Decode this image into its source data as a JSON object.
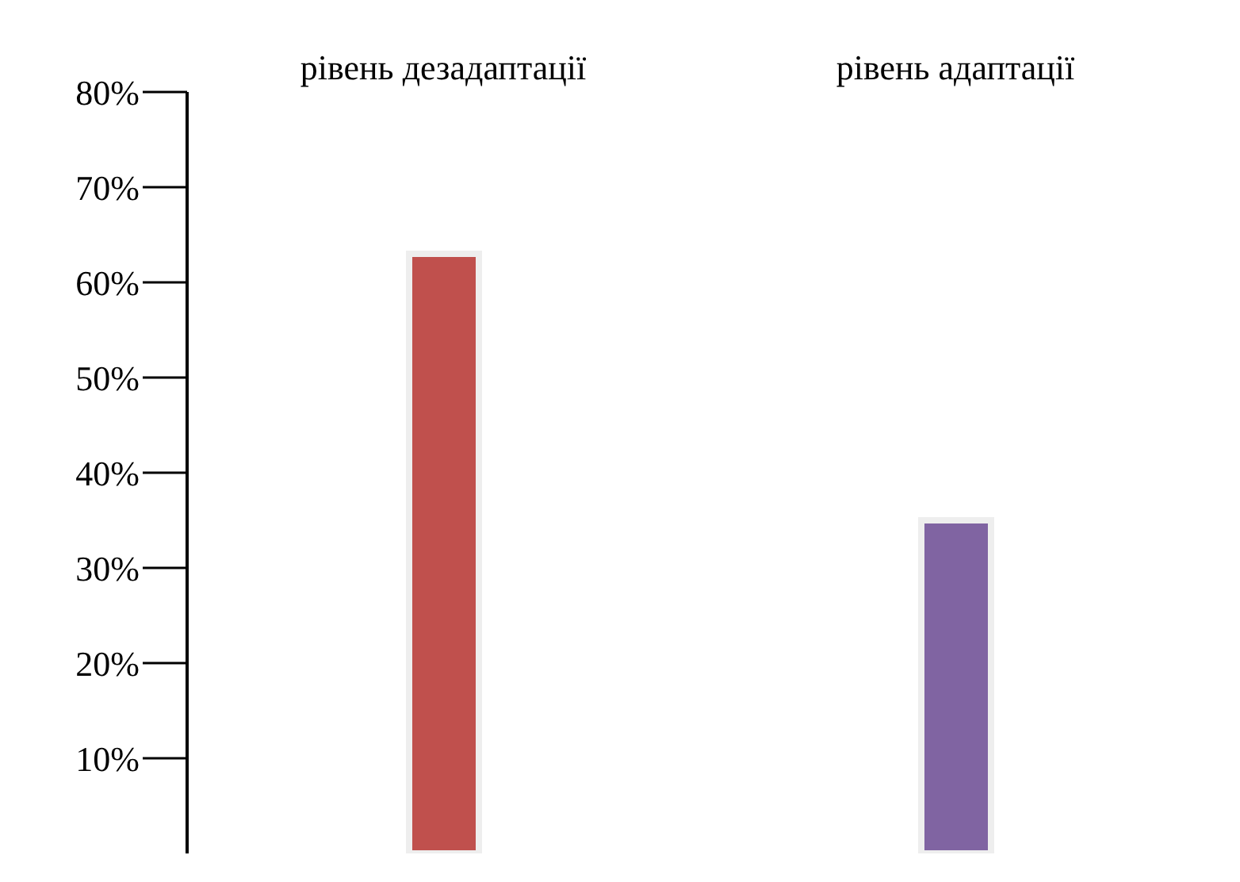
{
  "chart_data": {
    "type": "bar",
    "categories": [
      "рівень дезадаптації",
      "рівень адаптації"
    ],
    "values": [
      63,
      35
    ],
    "colors": [
      "#c0504d",
      "#8064a2"
    ],
    "ylim": [
      0,
      80
    ],
    "yticks": [
      {
        "value": 10,
        "label": "10%"
      },
      {
        "value": 20,
        "label": "20%"
      },
      {
        "value": 30,
        "label": "30%"
      },
      {
        "value": 40,
        "label": "40%"
      },
      {
        "value": 50,
        "label": "50%"
      },
      {
        "value": 60,
        "label": "60%"
      },
      {
        "value": 70,
        "label": "70%"
      },
      {
        "value": 80,
        "label": "80%"
      }
    ],
    "grid": false
  }
}
